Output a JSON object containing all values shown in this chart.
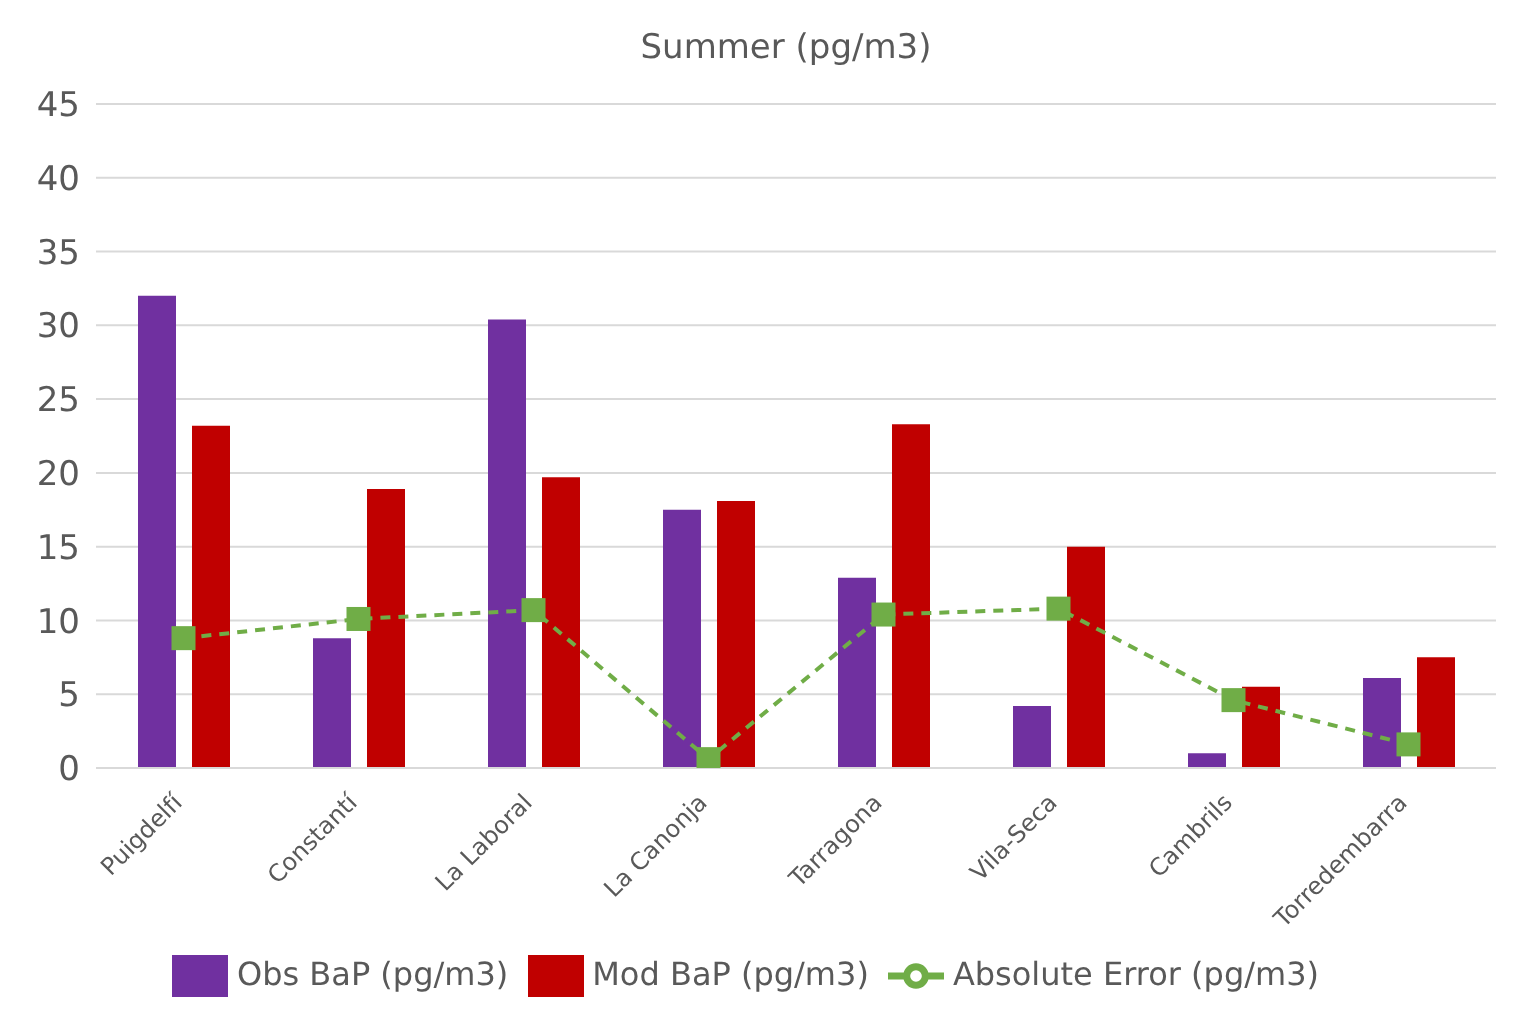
{
  "chart_data": {
    "type": "bar",
    "title": "Summer (pg/m3)",
    "categories": [
      "Puigdelfí",
      "Constantí",
      "La Laboral",
      "La Canonja",
      "Tarragona",
      "Vila-Seca",
      "Cambrils",
      "Torredembarra"
    ],
    "series": [
      {
        "name": "Obs BaP (pg/m3)",
        "color": "#7030a0",
        "values": [
          32.0,
          8.8,
          30.4,
          17.5,
          12.9,
          4.2,
          1.0,
          6.1
        ]
      },
      {
        "name": "Mod BaP (pg/m3)",
        "color": "#c00000",
        "values": [
          23.2,
          18.9,
          19.7,
          18.1,
          23.3,
          15.0,
          5.5,
          7.5
        ]
      },
      {
        "name": "Absolute Error (pg/m3)",
        "type": "line",
        "color": "#70ad47",
        "line_style": "dashed",
        "marker": "square",
        "values": [
          8.8,
          10.1,
          10.7,
          0.6,
          10.4,
          10.8,
          4.6,
          1.6
        ]
      }
    ],
    "ylim": [
      0,
      45
    ],
    "yticks": [
      0,
      5,
      10,
      15,
      20,
      25,
      30,
      35,
      40,
      45
    ],
    "grid": "y",
    "legend": "bottom"
  }
}
